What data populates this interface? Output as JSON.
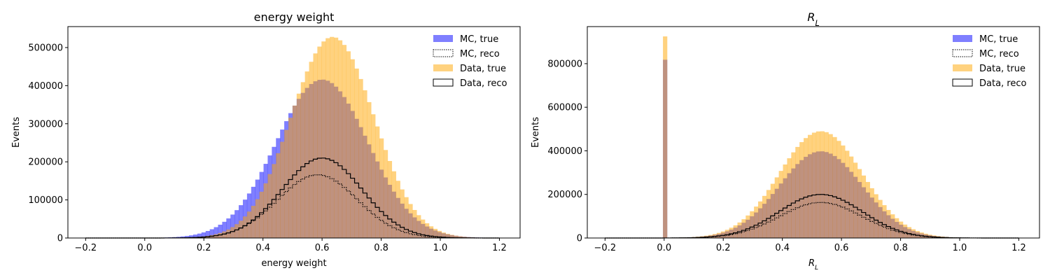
{
  "chart_data": [
    {
      "type": "histogram",
      "title": "energy weight",
      "xlabel": "energy weight",
      "ylabel": "Events",
      "xlim": [
        -0.26,
        1.27
      ],
      "ylim": [
        0,
        555000
      ],
      "xticks": [
        "−0.2",
        "0.0",
        "0.2",
        "0.4",
        "0.6",
        "0.8",
        "1.0",
        "1.2"
      ],
      "xtick_values": [
        -0.2,
        0.0,
        0.2,
        0.4,
        0.6,
        0.8,
        1.0,
        1.2
      ],
      "yticks": [
        "0",
        "100000",
        "200000",
        "300000",
        "400000",
        "500000"
      ],
      "ytick_values": [
        0,
        100000,
        200000,
        300000,
        400000,
        500000
      ],
      "legend": "top-right",
      "legend_entries": [
        "MC, true",
        "MC, reco",
        "Data, true",
        "Data, reco"
      ],
      "bins": {
        "start": -0.2,
        "end": 1.2,
        "count": 100
      },
      "series": [
        {
          "name": "MC, true",
          "style": "filled",
          "color": "#0000ff",
          "alpha": 0.5,
          "mu": 0.6,
          "sigma": 0.155,
          "peak": 416000,
          "spike": null
        },
        {
          "name": "MC, reco",
          "style": "step-dotted",
          "color": "#000000",
          "mu": 0.585,
          "sigma": 0.135,
          "peak": 166000,
          "spike": null
        },
        {
          "name": "Data, true",
          "style": "filled",
          "color": "#ffa500",
          "alpha": 0.5,
          "mu": 0.635,
          "sigma": 0.14,
          "peak": 528000,
          "spike": null
        },
        {
          "name": "Data, reco",
          "style": "step-solid",
          "color": "#000000",
          "mu": 0.6,
          "sigma": 0.135,
          "peak": 210000,
          "spike": null
        }
      ]
    },
    {
      "type": "histogram",
      "title": "R_L",
      "xlabel": "R_L",
      "ylabel": "Events",
      "xlim": [
        -0.26,
        1.27
      ],
      "ylim": [
        0,
        970000
      ],
      "xticks": [
        "−0.2",
        "0.0",
        "0.2",
        "0.4",
        "0.6",
        "0.8",
        "1.0",
        "1.2"
      ],
      "xtick_values": [
        -0.2,
        0.0,
        0.2,
        0.4,
        0.6,
        0.8,
        1.0,
        1.2
      ],
      "yticks": [
        "0",
        "200000",
        "400000",
        "600000",
        "800000"
      ],
      "ytick_values": [
        0,
        200000,
        400000,
        600000,
        800000
      ],
      "legend": "top-right",
      "legend_entries": [
        "MC, true",
        "MC, reco",
        "Data, true",
        "Data, reco"
      ],
      "bins": {
        "start": -0.2,
        "end": 1.2,
        "count": 100
      },
      "series": [
        {
          "name": "MC, true",
          "style": "filled",
          "color": "#0000ff",
          "alpha": 0.5,
          "mu": 0.53,
          "sigma": 0.14,
          "peak": 398000,
          "spike": 818000
        },
        {
          "name": "MC, reco",
          "style": "step-dotted",
          "color": "#000000",
          "mu": 0.53,
          "sigma": 0.14,
          "peak": 163000,
          "spike": null
        },
        {
          "name": "Data, true",
          "style": "filled",
          "color": "#ffa500",
          "alpha": 0.5,
          "mu": 0.53,
          "sigma": 0.14,
          "peak": 490000,
          "spike": 925000
        },
        {
          "name": "Data, reco",
          "style": "step-solid",
          "color": "#000000",
          "mu": 0.53,
          "sigma": 0.14,
          "peak": 200000,
          "spike": null
        }
      ]
    }
  ]
}
